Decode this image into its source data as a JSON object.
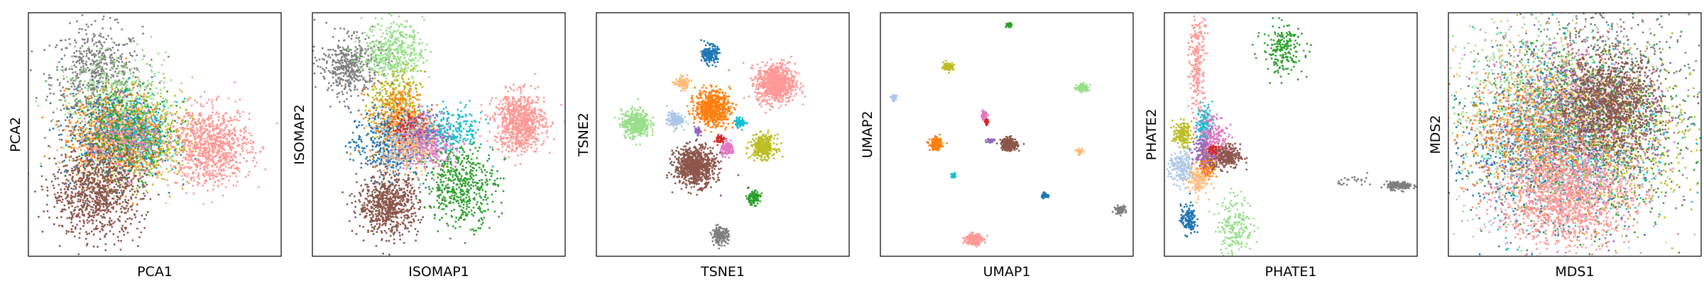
{
  "palette": {
    "blue": "#1f77b4",
    "light_blue": "#aec7e8",
    "orange": "#ff7f0e",
    "light_orange": "#ffbb78",
    "green": "#2ca02c",
    "light_green": "#98df8a",
    "red": "#d62728",
    "light_red": "#ff9896",
    "purple": "#9467bd",
    "brown": "#8c564b",
    "pink": "#e377c2",
    "gray": "#7f7f7f",
    "olive": "#bcbd22",
    "cyan": "#17becf"
  },
  "chart_data": [
    {
      "type": "scatter",
      "xlabel": "PCA1",
      "ylabel": "PCA2",
      "xlim": [
        0,
        10
      ],
      "ylim": [
        0,
        10
      ],
      "clusters": [
        {
          "color": "gray",
          "cx": 2.7,
          "cy": 7.4,
          "sx": 0.9,
          "sy": 1.0,
          "n": 600
        },
        {
          "color": "light_green",
          "cx": 3.6,
          "cy": 5.9,
          "sx": 1.1,
          "sy": 1.2,
          "n": 650
        },
        {
          "color": "olive",
          "cx": 4.6,
          "cy": 4.7,
          "sx": 0.9,
          "sy": 0.9,
          "n": 450
        },
        {
          "color": "blue",
          "cx": 3.3,
          "cy": 4.9,
          "sx": 1.0,
          "sy": 0.9,
          "n": 500
        },
        {
          "color": "orange",
          "cx": 3.5,
          "cy": 4.9,
          "sx": 1.0,
          "sy": 0.9,
          "n": 600
        },
        {
          "color": "cyan",
          "cx": 4.3,
          "cy": 5.0,
          "sx": 0.8,
          "sy": 0.7,
          "n": 300
        },
        {
          "color": "light_orange",
          "cx": 3.4,
          "cy": 4.6,
          "sx": 0.8,
          "sy": 0.8,
          "n": 250
        },
        {
          "color": "pink",
          "cx": 3.7,
          "cy": 4.7,
          "sx": 0.7,
          "sy": 0.7,
          "n": 200
        },
        {
          "color": "green",
          "cx": 3.9,
          "cy": 5.1,
          "sx": 0.9,
          "sy": 0.9,
          "n": 250
        },
        {
          "color": "brown",
          "cx": 2.7,
          "cy": 2.6,
          "sx": 0.9,
          "sy": 0.9,
          "n": 900
        },
        {
          "color": "light_red",
          "cx": 7.2,
          "cy": 4.5,
          "sx": 0.8,
          "sy": 0.8,
          "n": 900
        }
      ]
    },
    {
      "type": "scatter",
      "xlabel": "ISOMAP1",
      "ylabel": "ISOMAP2",
      "xlim": [
        0,
        10
      ],
      "ylim": [
        0,
        10
      ],
      "clusters": [
        {
          "color": "gray",
          "cx": 1.5,
          "cy": 7.8,
          "sx": 0.6,
          "sy": 0.6,
          "n": 450
        },
        {
          "color": "light_green",
          "cx": 3.2,
          "cy": 8.4,
          "sx": 0.6,
          "sy": 0.6,
          "n": 450
        },
        {
          "color": "olive",
          "cx": 3.3,
          "cy": 6.2,
          "sx": 0.5,
          "sy": 0.7,
          "n": 300
        },
        {
          "color": "orange",
          "cx": 3.5,
          "cy": 5.4,
          "sx": 0.6,
          "sy": 0.8,
          "n": 500
        },
        {
          "color": "blue",
          "cx": 2.9,
          "cy": 4.6,
          "sx": 0.7,
          "sy": 0.7,
          "n": 350
        },
        {
          "color": "light_blue",
          "cx": 3.9,
          "cy": 4.8,
          "sx": 0.6,
          "sy": 0.6,
          "n": 300
        },
        {
          "color": "pink",
          "cx": 4.6,
          "cy": 4.5,
          "sx": 0.6,
          "sy": 0.5,
          "n": 300
        },
        {
          "color": "purple",
          "cx": 4.4,
          "cy": 5.1,
          "sx": 0.4,
          "sy": 0.4,
          "n": 150
        },
        {
          "color": "cyan",
          "cx": 5.6,
          "cy": 5.2,
          "sx": 0.6,
          "sy": 0.5,
          "n": 200
        },
        {
          "color": "light_orange",
          "cx": 3.8,
          "cy": 4.4,
          "sx": 0.5,
          "sy": 0.5,
          "n": 150
        },
        {
          "color": "red",
          "cx": 3.7,
          "cy": 5.3,
          "sx": 0.3,
          "sy": 0.3,
          "n": 60
        },
        {
          "color": "green",
          "cx": 5.9,
          "cy": 2.9,
          "sx": 0.7,
          "sy": 0.8,
          "n": 500
        },
        {
          "color": "brown",
          "cx": 3.0,
          "cy": 2.1,
          "sx": 0.6,
          "sy": 0.6,
          "n": 700
        },
        {
          "color": "light_red",
          "cx": 8.2,
          "cy": 5.5,
          "sx": 0.5,
          "sy": 0.6,
          "n": 800
        }
      ]
    },
    {
      "type": "scatter",
      "xlabel": "TSNE1",
      "ylabel": "TSNE2",
      "xlim": [
        0,
        10
      ],
      "ylim": [
        0,
        10
      ],
      "clusters": [
        {
          "color": "blue",
          "cx": 4.5,
          "cy": 8.3,
          "sx": 0.15,
          "sy": 0.18,
          "n": 180
        },
        {
          "color": "light_orange",
          "cx": 3.4,
          "cy": 7.1,
          "sx": 0.13,
          "sy": 0.13,
          "n": 110
        },
        {
          "color": "orange",
          "cx": 4.6,
          "cy": 6.1,
          "sx": 0.34,
          "sy": 0.36,
          "n": 650
        },
        {
          "color": "light_red",
          "cx": 7.1,
          "cy": 7.1,
          "sx": 0.38,
          "sy": 0.4,
          "n": 800
        },
        {
          "color": "light_blue",
          "cx": 3.1,
          "cy": 5.6,
          "sx": 0.16,
          "sy": 0.16,
          "n": 140
        },
        {
          "color": "light_green",
          "cx": 1.55,
          "cy": 5.45,
          "sx": 0.28,
          "sy": 0.28,
          "n": 400
        },
        {
          "color": "cyan",
          "cx": 5.7,
          "cy": 5.5,
          "sx": 0.1,
          "sy": 0.1,
          "n": 70
        },
        {
          "color": "purple",
          "cx": 4.0,
          "cy": 5.1,
          "sx": 0.06,
          "sy": 0.1,
          "n": 40
        },
        {
          "color": "red",
          "cx": 4.9,
          "cy": 4.8,
          "sx": 0.08,
          "sy": 0.1,
          "n": 40
        },
        {
          "color": "pink",
          "cx": 5.2,
          "cy": 4.4,
          "sx": 0.14,
          "sy": 0.13,
          "n": 110
        },
        {
          "color": "olive",
          "cx": 6.6,
          "cy": 4.5,
          "sx": 0.24,
          "sy": 0.24,
          "n": 320
        },
        {
          "color": "brown",
          "cx": 3.9,
          "cy": 3.7,
          "sx": 0.4,
          "sy": 0.4,
          "n": 800
        },
        {
          "color": "green",
          "cx": 6.2,
          "cy": 2.4,
          "sx": 0.14,
          "sy": 0.14,
          "n": 130
        },
        {
          "color": "gray",
          "cx": 4.9,
          "cy": 0.85,
          "sx": 0.16,
          "sy": 0.16,
          "n": 170
        }
      ]
    },
    {
      "type": "scatter",
      "xlabel": "UMAP1",
      "ylabel": "UMAP2",
      "xlim": [
        0,
        10
      ],
      "ylim": [
        0,
        10
      ],
      "clusters": [
        {
          "color": "green",
          "cx": 5.1,
          "cy": 9.5,
          "sx": 0.06,
          "sy": 0.05,
          "n": 60
        },
        {
          "color": "olive",
          "cx": 2.7,
          "cy": 7.8,
          "sx": 0.1,
          "sy": 0.08,
          "n": 90
        },
        {
          "color": "light_green",
          "cx": 8.0,
          "cy": 6.9,
          "sx": 0.12,
          "sy": 0.08,
          "n": 110
        },
        {
          "color": "light_blue",
          "cx": 0.55,
          "cy": 6.5,
          "sx": 0.05,
          "sy": 0.05,
          "n": 40
        },
        {
          "color": "pink",
          "cx": 4.1,
          "cy": 5.8,
          "sx": 0.06,
          "sy": 0.1,
          "n": 60
        },
        {
          "color": "red",
          "cx": 4.2,
          "cy": 5.5,
          "sx": 0.04,
          "sy": 0.05,
          "n": 30
        },
        {
          "color": "orange",
          "cx": 2.2,
          "cy": 4.6,
          "sx": 0.12,
          "sy": 0.12,
          "n": 160
        },
        {
          "color": "purple",
          "cx": 4.35,
          "cy": 4.75,
          "sx": 0.08,
          "sy": 0.04,
          "n": 40
        },
        {
          "color": "brown",
          "cx": 5.1,
          "cy": 4.6,
          "sx": 0.16,
          "sy": 0.13,
          "n": 260
        },
        {
          "color": "light_orange",
          "cx": 7.9,
          "cy": 4.3,
          "sx": 0.06,
          "sy": 0.05,
          "n": 40
        },
        {
          "color": "cyan",
          "cx": 2.9,
          "cy": 3.3,
          "sx": 0.05,
          "sy": 0.05,
          "n": 30
        },
        {
          "color": "blue",
          "cx": 6.5,
          "cy": 2.5,
          "sx": 0.08,
          "sy": 0.05,
          "n": 60
        },
        {
          "color": "gray",
          "cx": 9.5,
          "cy": 1.9,
          "sx": 0.1,
          "sy": 0.08,
          "n": 80
        },
        {
          "color": "light_red",
          "cx": 3.7,
          "cy": 0.7,
          "sx": 0.16,
          "sy": 0.12,
          "n": 240
        }
      ]
    },
    {
      "type": "scatter",
      "xlabel": "PHATE1",
      "ylabel": "PHATE2",
      "xlim": [
        0,
        10
      ],
      "ylim": [
        0,
        10
      ],
      "clusters": [
        {
          "color": "light_red",
          "cx": 1.3,
          "cy": 8.0,
          "sx": 0.15,
          "sy": 1.3,
          "n": 250
        },
        {
          "color": "green",
          "cx": 4.7,
          "cy": 8.5,
          "sx": 0.4,
          "sy": 0.5,
          "n": 200
        },
        {
          "color": "olive",
          "cx": 0.7,
          "cy": 5.0,
          "sx": 0.18,
          "sy": 0.25,
          "n": 150
        },
        {
          "color": "cyan",
          "cx": 1.6,
          "cy": 5.4,
          "sx": 0.15,
          "sy": 0.4,
          "n": 140
        },
        {
          "color": "orange",
          "cx": 1.7,
          "cy": 3.8,
          "sx": 0.15,
          "sy": 0.3,
          "n": 180
        },
        {
          "color": "light_blue",
          "cx": 0.7,
          "cy": 3.6,
          "sx": 0.25,
          "sy": 0.35,
          "n": 200
        },
        {
          "color": "brown",
          "cx": 2.4,
          "cy": 4.1,
          "sx": 0.3,
          "sy": 0.25,
          "n": 320
        },
        {
          "color": "pink",
          "cx": 1.9,
          "cy": 4.9,
          "sx": 0.3,
          "sy": 0.5,
          "n": 200
        },
        {
          "color": "purple",
          "cx": 1.5,
          "cy": 4.3,
          "sx": 0.2,
          "sy": 0.3,
          "n": 100
        },
        {
          "color": "light_orange",
          "cx": 1.3,
          "cy": 3.1,
          "sx": 0.2,
          "sy": 0.3,
          "n": 120
        },
        {
          "color": "blue",
          "cx": 0.95,
          "cy": 1.5,
          "sx": 0.15,
          "sy": 0.3,
          "n": 140
        },
        {
          "color": "light_green",
          "cx": 2.8,
          "cy": 1.3,
          "sx": 0.35,
          "sy": 0.6,
          "n": 200
        },
        {
          "color": "red",
          "cx": 1.9,
          "cy": 4.4,
          "sx": 0.1,
          "sy": 0.1,
          "n": 40
        },
        {
          "color": "gray",
          "cx": 9.3,
          "cy": 2.9,
          "sx": 0.25,
          "sy": 0.08,
          "n": 180
        },
        {
          "color": "gray",
          "cx": 7.7,
          "cy": 3.1,
          "sx": 0.4,
          "sy": 0.12,
          "n": 25
        }
      ]
    },
    {
      "type": "scatter",
      "xlabel": "MDS1",
      "ylabel": "MDS2",
      "xlim": [
        0,
        10
      ],
      "ylim": [
        0,
        10
      ],
      "clusters": [
        {
          "color": "gray",
          "cx": 6.0,
          "cy": 6.5,
          "sx": 1.8,
          "sy": 1.8,
          "n": 900
        },
        {
          "color": "light_green",
          "cx": 3.5,
          "cy": 6.2,
          "sx": 1.8,
          "sy": 1.8,
          "n": 800
        },
        {
          "color": "green",
          "cx": 5.5,
          "cy": 5.0,
          "sx": 2.0,
          "sy": 2.0,
          "n": 700
        },
        {
          "color": "olive",
          "cx": 6.5,
          "cy": 4.8,
          "sx": 1.6,
          "sy": 1.6,
          "n": 600
        },
        {
          "color": "blue",
          "cx": 3.6,
          "cy": 4.5,
          "sx": 1.8,
          "sy": 1.6,
          "n": 600
        },
        {
          "color": "orange",
          "cx": 3.4,
          "cy": 5.0,
          "sx": 1.3,
          "sy": 1.3,
          "n": 700
        },
        {
          "color": "pink",
          "cx": 5.0,
          "cy": 5.5,
          "sx": 1.8,
          "sy": 1.8,
          "n": 500
        },
        {
          "color": "cyan",
          "cx": 5.0,
          "cy": 5.0,
          "sx": 2.0,
          "sy": 2.0,
          "n": 400
        },
        {
          "color": "light_blue",
          "cx": 4.0,
          "cy": 4.0,
          "sx": 1.8,
          "sy": 1.8,
          "n": 400
        },
        {
          "color": "light_orange",
          "cx": 4.0,
          "cy": 6.0,
          "sx": 1.8,
          "sy": 1.8,
          "n": 400
        },
        {
          "color": "purple",
          "cx": 5.0,
          "cy": 5.0,
          "sx": 1.9,
          "sy": 1.9,
          "n": 300
        },
        {
          "color": "brown",
          "cx": 6.3,
          "cy": 6.2,
          "sx": 1.0,
          "sy": 1.0,
          "n": 1100
        },
        {
          "color": "light_red",
          "cx": 4.6,
          "cy": 2.4,
          "sx": 1.3,
          "sy": 1.0,
          "n": 1300
        }
      ]
    }
  ]
}
